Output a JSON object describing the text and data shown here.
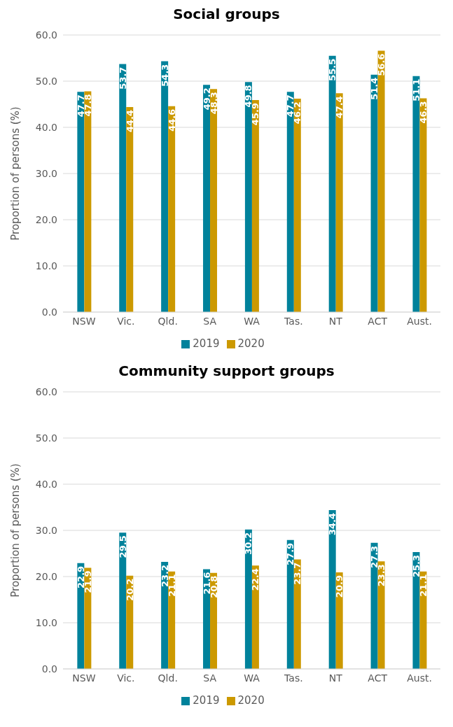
{
  "chart_data": [
    {
      "type": "bar",
      "title": "Social groups",
      "ylabel": "Proportion of persons (%)",
      "categories": [
        "NSW",
        "Vic.",
        "Qld.",
        "SA",
        "WA",
        "Tas.",
        "NT",
        "ACT",
        "Aust."
      ],
      "series": [
        {
          "name": "2019",
          "color": "#00829b",
          "values": [
            47.7,
            53.7,
            54.3,
            49.2,
            49.8,
            47.7,
            55.5,
            51.4,
            51.1
          ]
        },
        {
          "name": "2020",
          "color": "#cc9900",
          "values": [
            47.8,
            44.4,
            44.6,
            48.3,
            45.9,
            46.2,
            47.4,
            56.6,
            46.3
          ]
        }
      ],
      "ylim": [
        0,
        60
      ],
      "yticks": [
        {
          "value": 0,
          "label": "0.0"
        },
        {
          "value": 10,
          "label": "10.0"
        },
        {
          "value": 20,
          "label": "20.0"
        },
        {
          "value": 30,
          "label": "30.0"
        },
        {
          "value": 40,
          "label": "40.0"
        },
        {
          "value": 50,
          "label": "50.0"
        },
        {
          "value": 60,
          "label": "60.0"
        }
      ],
      "grid": "y",
      "legend": "bottom",
      "data_labels": true
    },
    {
      "type": "bar",
      "title": "Community support groups",
      "ylabel": "Proportion of persons (%)",
      "categories": [
        "NSW",
        "Vic.",
        "Qld.",
        "SA",
        "WA",
        "Tas.",
        "NT",
        "ACT",
        "Aust."
      ],
      "series": [
        {
          "name": "2019",
          "color": "#00829b",
          "values": [
            22.9,
            29.5,
            23.2,
            21.6,
            30.2,
            27.9,
            34.4,
            27.3,
            25.3
          ]
        },
        {
          "name": "2020",
          "color": "#cc9900",
          "values": [
            21.9,
            20.2,
            21.1,
            20.8,
            22.4,
            23.7,
            20.9,
            23.3,
            21.1
          ]
        }
      ],
      "ylim": [
        0,
        60
      ],
      "yticks": [
        {
          "value": 0,
          "label": "0.0"
        },
        {
          "value": 10,
          "label": "10.0"
        },
        {
          "value": 20,
          "label": "20.0"
        },
        {
          "value": 30,
          "label": "30.0"
        },
        {
          "value": 40,
          "label": "40.0"
        },
        {
          "value": 50,
          "label": "50.0"
        },
        {
          "value": 60,
          "label": "60.0"
        }
      ],
      "grid": "y",
      "legend": "bottom",
      "data_labels": true
    }
  ]
}
